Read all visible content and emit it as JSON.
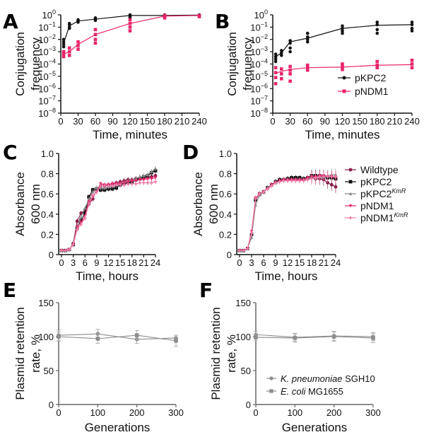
{
  "figure": {
    "panels": [
      "A",
      "B",
      "C",
      "D",
      "E",
      "F"
    ]
  },
  "chart_data": [
    {
      "panel": "A",
      "type": "scatter",
      "xlabel": "Time, minutes",
      "ylabel": "Conjugation frequency",
      "yscale": "log10",
      "ylim_exp": [
        -8,
        0
      ],
      "ytick_exps": [
        0,
        -1,
        -2,
        -3,
        -4,
        -5,
        -6,
        -7,
        -8
      ],
      "xlim": [
        0,
        240
      ],
      "xticks": [
        0,
        30,
        60,
        90,
        120,
        150,
        180,
        210,
        240
      ],
      "series": [
        {
          "name": "pKPC2",
          "color": "#111111",
          "marker": "circle",
          "x": [
            5,
            15,
            30,
            60,
            120,
            180,
            240
          ],
          "mean_exp": [
            -2.3,
            -0.9,
            -0.5,
            -0.35,
            -0.05,
            -0.05,
            -0.02
          ],
          "points_exp": [
            [
              -2.0,
              -2.2,
              -2.4,
              -2.6
            ],
            [
              -0.7,
              -0.8,
              -1.0,
              -1.1
            ],
            [
              -0.4,
              -0.5,
              -0.6
            ],
            [
              -0.25,
              -0.35,
              -0.45
            ],
            [
              0,
              -0.1,
              -0.2
            ],
            [
              0,
              -0.1,
              -0.15
            ],
            [
              0,
              -0.05,
              -0.1
            ]
          ]
        },
        {
          "name": "pNDM1",
          "color": "#e8256c",
          "marker": "square",
          "x": [
            5,
            15,
            30,
            60,
            120,
            180,
            240
          ],
          "mean_exp": [
            -3.2,
            -3.0,
            -2.4,
            -1.6,
            -0.7,
            -0.1,
            -0.05
          ],
          "points_exp": [
            [
              -3.0,
              -3.2,
              -3.4
            ],
            [
              -2.7,
              -3.0,
              -3.3
            ],
            [
              -2.2,
              -2.5,
              -2.8
            ],
            [
              -1.2,
              -1.6,
              -2.0,
              -2.3
            ],
            [
              -0.4,
              -0.7,
              -1.0,
              -1.3
            ],
            [
              -0.05,
              -0.15,
              -0.25
            ],
            [
              -0.05,
              -0.15
            ]
          ]
        }
      ]
    },
    {
      "panel": "B",
      "type": "scatter",
      "xlabel": "Time, minutes",
      "ylabel": "Conjugation frequency",
      "yscale": "log10",
      "ylim_exp": [
        -8,
        0
      ],
      "ytick_exps": [
        0,
        -1,
        -2,
        -3,
        -4,
        -5,
        -6,
        -7,
        -8
      ],
      "xlim": [
        0,
        240
      ],
      "xticks": [
        0,
        30,
        60,
        90,
        120,
        150,
        180,
        210,
        240
      ],
      "legend": {
        "position": "right",
        "entries": [
          "pKPC2",
          "pNDM1"
        ]
      },
      "series": [
        {
          "name": "pKPC2",
          "color": "#111111",
          "marker": "circle",
          "x": [
            5,
            15,
            30,
            60,
            120,
            180,
            240
          ],
          "mean_exp": [
            -3.4,
            -3.1,
            -2.2,
            -1.9,
            -1.1,
            -0.85,
            -0.8
          ],
          "points_exp": [
            [
              -3.2,
              -3.4,
              -3.6,
              -3.8
            ],
            [
              -2.9,
              -3.1,
              -3.3
            ],
            [
              -2.1,
              -2.3,
              -2.7,
              -3.0
            ],
            [
              -1.5,
              -1.8,
              -2.0,
              -2.2
            ],
            [
              -0.9,
              -1.1,
              -1.3,
              -1.5
            ],
            [
              -0.6,
              -0.8,
              -1.2,
              -1.5
            ],
            [
              -0.6,
              -0.8,
              -1.1,
              -1.3
            ]
          ]
        },
        {
          "name": "pNDM1",
          "color": "#e8256c",
          "marker": "square",
          "x": [
            5,
            15,
            30,
            60,
            120,
            180,
            240
          ],
          "mean_exp": [
            -4.75,
            -4.6,
            -4.45,
            -4.3,
            -4.25,
            -4.1,
            -4.05
          ],
          "points_exp": [
            [
              -4.3,
              -4.7,
              -5.1,
              -5.6
            ],
            [
              -4.4,
              -4.8,
              -5.2
            ],
            [
              -4.2,
              -4.5,
              -4.8,
              -5.4
            ],
            [
              -4.1,
              -4.3,
              -4.5
            ],
            [
              -4.0,
              -4.25,
              -4.45
            ],
            [
              -3.8,
              -4.1,
              -4.3
            ],
            [
              -3.7,
              -4.0,
              -4.3
            ]
          ]
        }
      ]
    },
    {
      "panel": "C",
      "type": "line",
      "xlabel": "Time, hours",
      "ylabel": "Absorbance 600 nm",
      "xlim": [
        0,
        24
      ],
      "ylim": [
        0,
        1.0
      ],
      "xticks": [
        0,
        3,
        6,
        9,
        12,
        15,
        18,
        21,
        24
      ],
      "yticks": [
        0,
        0.2,
        0.4,
        0.6,
        0.8,
        1.0
      ],
      "ytick_labels": [
        "0",
        "0.2",
        "0.4",
        "0.6",
        "0.8",
        "1.0"
      ],
      "x": [
        0,
        1,
        2,
        3,
        4,
        5,
        6,
        7,
        8,
        9,
        10,
        11,
        12,
        13,
        14,
        15,
        16,
        17,
        18,
        19,
        20,
        21,
        22,
        23,
        24
      ],
      "series": [
        {
          "name": "Wildtype",
          "color": "#8b1a4a",
          "marker": "circle",
          "values": [
            0.04,
            0.04,
            0.05,
            0.11,
            0.33,
            0.41,
            0.44,
            0.5,
            0.55,
            0.65,
            0.68,
            0.68,
            0.69,
            0.7,
            0.71,
            0.72,
            0.73,
            0.74,
            0.74,
            0.75,
            0.75,
            0.76,
            0.76,
            0.77,
            0.78
          ]
        },
        {
          "name": "pKPC2",
          "color": "#111111",
          "marker": "square",
          "values": [
            0.04,
            0.04,
            0.05,
            0.1,
            0.26,
            0.34,
            0.41,
            0.57,
            0.64,
            0.65,
            0.64,
            0.64,
            0.65,
            0.65,
            0.66,
            0.69,
            0.7,
            0.71,
            0.72,
            0.74,
            0.75,
            0.77,
            0.78,
            0.81,
            0.83
          ]
        },
        {
          "name": "pKPC2^KmR",
          "color": "#888888",
          "marker": "triangle-up",
          "values": [
            0.04,
            0.04,
            0.05,
            0.11,
            0.28,
            0.37,
            0.46,
            0.55,
            0.62,
            0.66,
            0.66,
            0.66,
            0.67,
            0.68,
            0.69,
            0.7,
            0.72,
            0.73,
            0.74,
            0.75,
            0.77,
            0.78,
            0.79,
            0.82,
            0.85
          ]
        },
        {
          "name": "pNDM1",
          "color": "#e8256c",
          "marker": "triangle-down",
          "values": [
            0.04,
            0.04,
            0.05,
            0.1,
            0.27,
            0.32,
            0.38,
            0.52,
            0.58,
            0.62,
            0.7,
            0.69,
            0.69,
            0.7,
            0.7,
            0.7,
            0.71,
            0.72,
            0.73,
            0.73,
            0.74,
            0.74,
            0.75,
            0.75,
            0.76
          ]
        },
        {
          "name": "pNDM1^KmR",
          "color": "#f07aa8",
          "marker": "star",
          "values": [
            0.04,
            0.04,
            0.05,
            0.1,
            0.25,
            0.3,
            0.36,
            0.5,
            0.58,
            0.62,
            0.68,
            0.68,
            0.68,
            0.68,
            0.69,
            0.69,
            0.69,
            0.7,
            0.7,
            0.7,
            0.71,
            0.71,
            0.71,
            0.71,
            0.72
          ]
        }
      ]
    },
    {
      "panel": "D",
      "type": "line",
      "xlabel": "Time, hours",
      "ylabel": "Absorbance 600 nm",
      "xlim": [
        0,
        24
      ],
      "ylim": [
        0,
        1.0
      ],
      "xticks": [
        0,
        3,
        6,
        9,
        12,
        15,
        18,
        21,
        24
      ],
      "yticks": [
        0,
        0.2,
        0.4,
        0.6,
        0.8,
        1.0
      ],
      "ytick_labels": [
        "0",
        "0.2",
        "0.4",
        "0.6",
        "0.8",
        "1.0"
      ],
      "legend": {
        "position": "right",
        "entries": [
          "Wildtype",
          "pKPC2",
          "pKPC2^KmR",
          "pNDM1",
          "pNDM1^KmR"
        ]
      },
      "x": [
        0,
        1,
        2,
        3,
        4,
        5,
        6,
        7,
        8,
        9,
        10,
        11,
        12,
        13,
        14,
        15,
        16,
        17,
        18,
        19,
        20,
        21,
        22,
        23,
        24
      ],
      "series": [
        {
          "name": "Wildtype",
          "color": "#8b1a4a",
          "marker": "circle",
          "values": [
            0.04,
            0.04,
            0.06,
            0.2,
            0.55,
            0.6,
            0.62,
            0.66,
            0.69,
            0.72,
            0.74,
            0.74,
            0.75,
            0.75,
            0.75,
            0.74,
            0.74,
            0.75,
            0.76,
            0.75,
            0.75,
            0.74,
            0.71,
            0.69,
            0.67
          ]
        },
        {
          "name": "pKPC2",
          "color": "#111111",
          "marker": "square",
          "values": [
            0.04,
            0.04,
            0.06,
            0.2,
            0.54,
            0.6,
            0.62,
            0.66,
            0.69,
            0.72,
            0.74,
            0.74,
            0.75,
            0.76,
            0.76,
            0.76,
            0.75,
            0.76,
            0.78,
            0.78,
            0.78,
            0.77,
            0.76,
            0.76,
            0.75
          ]
        },
        {
          "name": "pKPC2^KmR",
          "color": "#888888",
          "marker": "triangle-up",
          "values": [
            0.04,
            0.04,
            0.06,
            0.17,
            0.49,
            0.59,
            0.62,
            0.66,
            0.69,
            0.71,
            0.73,
            0.74,
            0.74,
            0.74,
            0.74,
            0.74,
            0.74,
            0.75,
            0.76,
            0.76,
            0.77,
            0.77,
            0.78,
            0.79,
            0.79
          ]
        },
        {
          "name": "pNDM1",
          "color": "#e8256c",
          "marker": "triangle-down",
          "values": [
            0.04,
            0.04,
            0.06,
            0.23,
            0.56,
            0.6,
            0.62,
            0.65,
            0.69,
            0.71,
            0.73,
            0.74,
            0.74,
            0.74,
            0.74,
            0.74,
            0.74,
            0.76,
            0.77,
            0.77,
            0.78,
            0.78,
            0.77,
            0.77,
            0.76
          ]
        },
        {
          "name": "pNDM1^KmR",
          "color": "#f07aa8",
          "marker": "star",
          "values": [
            0.04,
            0.04,
            0.06,
            0.21,
            0.55,
            0.6,
            0.62,
            0.65,
            0.68,
            0.71,
            0.72,
            0.73,
            0.73,
            0.73,
            0.73,
            0.73,
            0.73,
            0.74,
            0.75,
            0.76,
            0.77,
            0.77,
            0.77,
            0.77,
            0.77
          ]
        }
      ]
    },
    {
      "panel": "E",
      "type": "line",
      "xlabel": "Generations",
      "ylabel": "Plasmid retention rate, %",
      "xlim": [
        0,
        300
      ],
      "ylim": [
        0,
        150
      ],
      "xticks": [
        0,
        100,
        200,
        300
      ],
      "yticks": [
        0,
        50,
        100,
        150
      ],
      "series": [
        {
          "name": "K. pneumoniae SGH10",
          "color": "#8c8c8c",
          "marker": "circle",
          "x": [
            0,
            100,
            200,
            300
          ],
          "values": [
            102,
            104,
            96,
            98
          ],
          "err": [
            8,
            7,
            6,
            4
          ]
        },
        {
          "name": "E. coli MG1655",
          "color": "#8c8c8c",
          "marker": "square",
          "x": [
            0,
            100,
            200,
            300
          ],
          "values": [
            100,
            97,
            102,
            94
          ],
          "err": [
            7,
            7,
            7,
            8
          ]
        }
      ]
    },
    {
      "panel": "F",
      "type": "line",
      "xlabel": "Generations",
      "ylabel": "Plasmid retention rate, %",
      "xlim": [
        0,
        300
      ],
      "ylim": [
        0,
        150
      ],
      "xticks": [
        0,
        100,
        200,
        300
      ],
      "yticks": [
        0,
        50,
        100,
        150
      ],
      "legend": {
        "position": "bottom-left",
        "entries": [
          {
            "italic": "K. pneumoniae",
            "normal": " SGH10"
          },
          {
            "italic": "E. coli",
            "normal": " MG1655"
          }
        ]
      },
      "series": [
        {
          "name": "K. pneumoniae SGH10",
          "color": "#8c8c8c",
          "marker": "circle",
          "x": [
            0,
            100,
            200,
            300
          ],
          "values": [
            103,
            99,
            101,
            100
          ],
          "err": [
            5,
            6,
            7,
            6
          ]
        },
        {
          "name": "E. coli MG1655",
          "color": "#8c8c8c",
          "marker": "square",
          "x": [
            0,
            100,
            200,
            300
          ],
          "values": [
            99,
            98,
            100,
            98
          ],
          "err": [
            5,
            6,
            7,
            7
          ]
        }
      ]
    }
  ]
}
